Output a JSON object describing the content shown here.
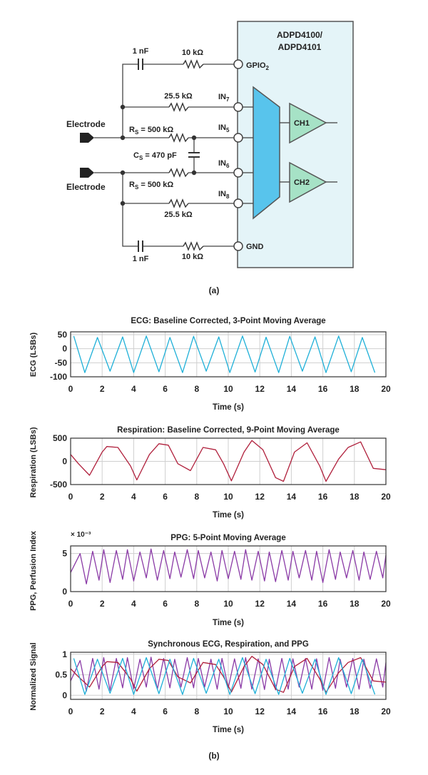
{
  "circuit": {
    "chip_title_line1": "ADPD4100/",
    "chip_title_line2": "ADPD4101",
    "pins": {
      "gpio": "GPIO",
      "gpio_sub": "2",
      "in7": "IN",
      "in7_sub": "7",
      "in5": "IN",
      "in5_sub": "5",
      "in6": "IN",
      "in6_sub": "6",
      "in8": "IN",
      "in8_sub": "8",
      "gnd": "GND"
    },
    "channels": [
      "CH1",
      "CH2"
    ],
    "components": {
      "cap_top": "1 nF",
      "res_top": "10 kΩ",
      "res_in7": "25.5 kΩ",
      "rs_top_prefix": "R",
      "rs_top_sub": "S",
      "rs_top_value": " = 500 kΩ",
      "cs_prefix": "C",
      "cs_sub": "S",
      "cs_value": " = 470 pF",
      "rs_bot_prefix": "R",
      "rs_bot_sub": "S",
      "rs_bot_value": " = 500 kΩ",
      "res_in8": "25.5 kΩ",
      "cap_bot": "1 nF",
      "res_bot": "10 kΩ"
    },
    "electrode_top": "Electrode",
    "electrode_bottom": "Electrode",
    "caption": "(a)"
  },
  "caption_b": "(b)",
  "colors": {
    "chip_fill": "#e4f4f8",
    "mux_fill": "#58c4ec",
    "amp_fill": "#a6e2c6",
    "ecg": "#1fb0d8",
    "respiration": "#b0203c",
    "ppg": "#8a3aa6"
  },
  "chart_data": [
    {
      "type": "line",
      "title": "ECG: Baseline Corrected, 3-Point Moving Average",
      "xlabel": "Time (s)",
      "ylabel": "ECG (LSBs)",
      "xlim": [
        0,
        20
      ],
      "ylim": [
        -100,
        60
      ],
      "xticks": [
        "0",
        "2",
        "4",
        "6",
        "8",
        "10",
        "12",
        "14",
        "16",
        "18",
        "20"
      ],
      "yticks": [
        {
          "value": 50,
          "label": "50"
        },
        {
          "value": 0,
          "label": "0"
        },
        {
          "value": -50,
          "label": "-50"
        },
        {
          "value": -100,
          "label": "-100"
        }
      ],
      "exponent_label": "",
      "grid": true,
      "series": [
        {
          "color": "#1fb0d8",
          "x": [
            0.2,
            0.9,
            1.7,
            2.5,
            3.3,
            4.0,
            4.8,
            5.6,
            6.3,
            7.1,
            7.8,
            8.6,
            9.4,
            10.1,
            10.9,
            11.7,
            12.4,
            13.2,
            13.9,
            14.7,
            15.5,
            16.2,
            17.0,
            17.8,
            18.5,
            19.3
          ],
          "y": [
            45,
            -85,
            40,
            -80,
            42,
            -85,
            45,
            -82,
            40,
            -85,
            44,
            -80,
            42,
            -85,
            45,
            -83,
            41,
            -85,
            44,
            -80,
            42,
            -85,
            45,
            -82,
            40,
            -85
          ]
        }
      ]
    },
    {
      "type": "line",
      "title": "Respiration: Baseline Corrected, 9-Point Moving Average",
      "xlabel": "Time (s)",
      "ylabel": "Respiration (LSBs)",
      "xlim": [
        0,
        20
      ],
      "ylim": [
        -500,
        500
      ],
      "xticks": [
        "0",
        "2",
        "4",
        "6",
        "8",
        "10",
        "12",
        "14",
        "16",
        "18",
        "20"
      ],
      "yticks": [
        {
          "value": 500,
          "label": "500"
        },
        {
          "value": 0,
          "label": "0"
        },
        {
          "value": -500,
          "label": "-500"
        }
      ],
      "exponent_label": "",
      "grid": true,
      "series": [
        {
          "color": "#b0203c",
          "x": [
            0,
            0.5,
            1.2,
            2.0,
            2.3,
            3.0,
            3.8,
            4.2,
            5.0,
            5.6,
            6.2,
            6.8,
            7.6,
            8.4,
            9.2,
            9.7,
            10.2,
            11.0,
            11.5,
            12.2,
            13.0,
            13.5,
            14.2,
            15.0,
            15.8,
            16.2,
            17.0,
            17.6,
            18.4,
            19.2,
            20.0
          ],
          "y": [
            150,
            -50,
            -300,
            200,
            320,
            300,
            -100,
            -400,
            150,
            380,
            350,
            -50,
            -200,
            300,
            250,
            -50,
            -420,
            200,
            450,
            250,
            -350,
            -430,
            200,
            400,
            -100,
            -430,
            50,
            300,
            420,
            -150,
            -180
          ]
        }
      ]
    },
    {
      "type": "line",
      "title": "PPG: 5-Point Moving Average",
      "xlabel": "Time (s)",
      "ylabel": "PPG, Perfusion Index",
      "xlim": [
        0,
        20
      ],
      "ylim": [
        0,
        6
      ],
      "xticks": [
        "0",
        "2",
        "4",
        "6",
        "8",
        "10",
        "12",
        "14",
        "16",
        "18",
        "20"
      ],
      "yticks": [
        {
          "value": 5,
          "label": "5"
        },
        {
          "value": 0,
          "label": "0"
        }
      ],
      "exponent_label": "× 10⁻³",
      "grid": true,
      "series": [
        {
          "color": "#8a3aa6",
          "x": [
            0.0,
            0.6,
            1.0,
            1.4,
            1.8,
            2.1,
            2.5,
            2.9,
            3.3,
            3.6,
            4.0,
            4.4,
            4.8,
            5.1,
            5.5,
            5.9,
            6.3,
            6.6,
            7.0,
            7.4,
            7.8,
            8.1,
            8.5,
            8.9,
            9.3,
            9.6,
            10.0,
            10.4,
            10.8,
            11.1,
            11.5,
            11.9,
            12.3,
            12.6,
            13.0,
            13.4,
            13.8,
            14.1,
            14.5,
            14.9,
            15.3,
            15.6,
            16.0,
            16.4,
            16.8,
            17.1,
            17.5,
            17.9,
            18.3,
            18.6,
            19.0,
            19.4,
            19.8,
            20.0
          ],
          "y": [
            2.5,
            5.0,
            1.0,
            5.3,
            1.5,
            5.5,
            1.2,
            5.4,
            1.6,
            5.5,
            1.4,
            5.2,
            1.8,
            5.6,
            1.5,
            5.4,
            1.7,
            5.2,
            1.9,
            5.5,
            1.7,
            5.4,
            1.8,
            5.2,
            1.4,
            5.4,
            1.7,
            5.3,
            1.6,
            5.5,
            1.5,
            5.3,
            1.4,
            5.2,
            1.3,
            5.4,
            1.5,
            5.3,
            1.8,
            5.4,
            1.5,
            5.3,
            1.2,
            5.5,
            1.6,
            5.2,
            1.8,
            5.4,
            1.5,
            5.2,
            1.6,
            5.3,
            1.8,
            4.8
          ]
        }
      ]
    },
    {
      "type": "line",
      "title": "Synchronous ECG, Respiration, and PPG",
      "xlabel": "Time (s)",
      "ylabel": "Normalized Signal",
      "xlim": [
        0,
        20
      ],
      "ylim": [
        -0.1,
        1.05
      ],
      "xticks": [
        "0",
        "2",
        "4",
        "6",
        "8",
        "10",
        "12",
        "14",
        "16",
        "18",
        "20"
      ],
      "yticks": [
        {
          "value": 1,
          "label": "1"
        },
        {
          "value": 0.5,
          "label": "0.5"
        },
        {
          "value": 0,
          "label": "0"
        }
      ],
      "exponent_label": "",
      "grid": true,
      "series": [
        {
          "color": "#8a3aa6",
          "x": [
            0.0,
            0.6,
            1.0,
            1.4,
            1.8,
            2.1,
            2.5,
            2.9,
            3.3,
            3.6,
            4.0,
            4.4,
            4.8,
            5.1,
            5.5,
            5.9,
            6.3,
            6.6,
            7.0,
            7.4,
            7.8,
            8.1,
            8.5,
            8.9,
            9.3,
            9.6,
            10.0,
            10.4,
            10.8,
            11.1,
            11.5,
            11.9,
            12.3,
            12.6,
            13.0,
            13.4,
            13.8,
            14.1,
            14.5,
            14.9,
            15.3,
            15.6,
            16.0,
            16.4,
            16.8,
            17.1,
            17.5,
            17.9,
            18.3,
            18.6,
            19.0,
            19.4,
            19.8,
            20.0
          ],
          "y": [
            0.35,
            0.85,
            0.1,
            0.9,
            0.15,
            0.92,
            0.12,
            0.9,
            0.18,
            0.92,
            0.15,
            0.88,
            0.2,
            0.93,
            0.15,
            0.9,
            0.18,
            0.88,
            0.2,
            0.92,
            0.18,
            0.9,
            0.2,
            0.88,
            0.15,
            0.9,
            0.18,
            0.89,
            0.17,
            0.92,
            0.15,
            0.89,
            0.14,
            0.88,
            0.13,
            0.9,
            0.15,
            0.89,
            0.2,
            0.9,
            0.15,
            0.89,
            0.12,
            0.92,
            0.17,
            0.88,
            0.2,
            0.9,
            0.15,
            0.88,
            0.17,
            0.89,
            0.2,
            0.8
          ]
        },
        {
          "color": "#b0203c",
          "x": [
            0,
            0.5,
            1.2,
            2.0,
            2.3,
            3.0,
            3.8,
            4.2,
            5.0,
            5.6,
            6.2,
            6.8,
            7.6,
            8.4,
            9.2,
            9.7,
            10.2,
            11.0,
            11.5,
            12.2,
            13.0,
            13.5,
            14.2,
            15.0,
            15.8,
            16.2,
            17.0,
            17.6,
            18.4,
            19.2,
            20.0
          ],
          "y": [
            0.65,
            0.45,
            0.2,
            0.7,
            0.82,
            0.8,
            0.4,
            0.1,
            0.65,
            0.88,
            0.85,
            0.45,
            0.3,
            0.8,
            0.75,
            0.45,
            0.08,
            0.7,
            0.95,
            0.75,
            0.15,
            0.07,
            0.7,
            0.9,
            0.4,
            0.07,
            0.55,
            0.8,
            0.92,
            0.35,
            0.32
          ]
        },
        {
          "color": "#1fb0d8",
          "x": [
            0.2,
            0.9,
            1.7,
            2.5,
            3.3,
            4.0,
            4.8,
            5.6,
            6.3,
            7.1,
            7.8,
            8.6,
            9.4,
            10.1,
            10.9,
            11.7,
            12.4,
            13.2,
            13.9,
            14.7,
            15.5,
            16.2,
            17.0,
            17.8,
            18.5,
            19.3
          ],
          "y": [
            0.9,
            0.02,
            0.88,
            0.05,
            0.9,
            0.02,
            0.92,
            0.04,
            0.88,
            0.02,
            0.9,
            0.05,
            0.88,
            0.02,
            0.92,
            0.04,
            0.88,
            0.02,
            0.9,
            0.05,
            0.88,
            0.02,
            0.92,
            0.04,
            0.88,
            0.02
          ]
        }
      ]
    }
  ]
}
